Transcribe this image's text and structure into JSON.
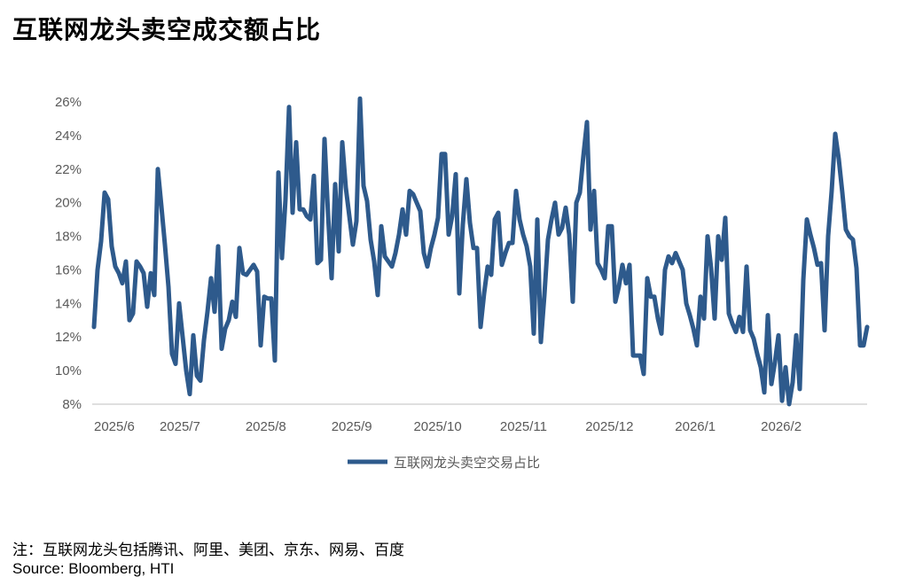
{
  "page": {
    "title": "互联网龙头卖空成交额占比",
    "footnote": "注：互联网龙头包括腾讯、阿里、美团、京东、网易、百度",
    "source": "Source: Bloomberg, HTI"
  },
  "colors": {
    "line": "#2E5A8C",
    "axis": "#BFBFBF",
    "tick_text": "#595959"
  },
  "chart_data": {
    "type": "line",
    "title": "互联网龙头卖空成交额占比",
    "xlabel": "",
    "ylabel": "",
    "ylim": [
      0.08,
      0.26
    ],
    "yticks": [
      0.08,
      0.1,
      0.12,
      0.14,
      0.16,
      0.18,
      0.2,
      0.22,
      0.24,
      0.26
    ],
    "ytick_labels": [
      "8%",
      "10%",
      "12%",
      "14%",
      "16%",
      "18%",
      "20%",
      "22%",
      "24%",
      "26%"
    ],
    "xtick_labels": [
      "2025/6",
      "2025/7",
      "2025/8",
      "2025/9",
      "2025/10",
      "2025/11",
      "2025/12",
      "2026/1",
      "2026/2"
    ],
    "grid": false,
    "legend_position": "bottom",
    "series": [
      {
        "name": "互联网龙头卖空交易占比",
        "values": [
          0.126,
          0.16,
          0.177,
          0.206,
          0.202,
          0.174,
          0.162,
          0.158,
          0.152,
          0.165,
          0.13,
          0.134,
          0.165,
          0.162,
          0.158,
          0.138,
          0.158,
          0.145,
          0.22,
          0.198,
          0.175,
          0.15,
          0.11,
          0.104,
          0.14,
          0.12,
          0.1,
          0.086,
          0.121,
          0.097,
          0.094,
          0.118,
          0.135,
          0.155,
          0.135,
          0.174,
          0.113,
          0.125,
          0.13,
          0.141,
          0.132,
          0.173,
          0.158,
          0.157,
          0.16,
          0.163,
          0.159,
          0.115,
          0.144,
          0.143,
          0.143,
          0.106,
          0.218,
          0.167,
          0.202,
          0.257,
          0.194,
          0.236,
          0.196,
          0.196,
          0.192,
          0.19,
          0.216,
          0.164,
          0.166,
          0.238,
          0.193,
          0.155,
          0.211,
          0.171,
          0.236,
          0.209,
          0.192,
          0.175,
          0.189,
          0.262,
          0.21,
          0.201,
          0.178,
          0.165,
          0.145,
          0.186,
          0.168,
          0.165,
          0.162,
          0.17,
          0.181,
          0.196,
          0.181,
          0.207,
          0.205,
          0.2,
          0.195,
          0.17,
          0.162,
          0.173,
          0.181,
          0.191,
          0.229,
          0.229,
          0.181,
          0.192,
          0.217,
          0.146,
          0.187,
          0.214,
          0.188,
          0.173,
          0.173,
          0.126,
          0.146,
          0.162,
          0.157,
          0.19,
          0.194,
          0.163,
          0.17,
          0.176,
          0.176,
          0.207,
          0.19,
          0.181,
          0.174,
          0.162,
          0.122,
          0.19,
          0.117,
          0.145,
          0.178,
          0.19,
          0.2,
          0.181,
          0.185,
          0.197,
          0.181,
          0.141,
          0.2,
          0.206,
          0.228,
          0.248,
          0.184,
          0.207,
          0.164,
          0.16,
          0.155,
          0.186,
          0.186,
          0.141,
          0.15,
          0.163,
          0.152,
          0.163,
          0.109,
          0.109,
          0.109,
          0.098,
          0.155,
          0.144,
          0.144,
          0.131,
          0.122,
          0.16,
          0.168,
          0.164,
          0.17,
          0.165,
          0.16,
          0.14,
          0.133,
          0.125,
          0.115,
          0.144,
          0.131,
          0.18,
          0.161,
          0.131,
          0.18,
          0.166,
          0.191,
          0.134,
          0.128,
          0.123,
          0.132,
          0.123,
          0.162,
          0.124,
          0.119,
          0.11,
          0.102,
          0.087,
          0.133,
          0.092,
          0.105,
          0.121,
          0.082,
          0.102,
          0.08,
          0.093,
          0.121,
          0.089,
          0.154,
          0.19,
          0.181,
          0.173,
          0.163,
          0.164,
          0.124,
          0.18,
          0.207,
          0.241,
          0.226,
          0.206,
          0.184,
          0.18,
          0.178,
          0.161,
          0.115,
          0.115,
          0.126
        ]
      }
    ]
  }
}
